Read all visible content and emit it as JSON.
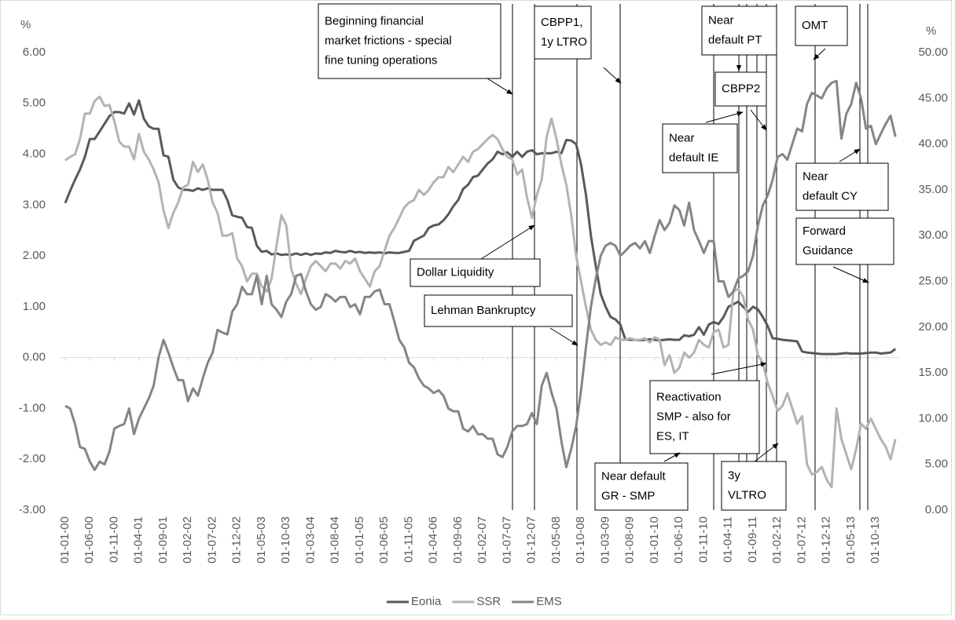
{
  "chart_data": {
    "type": "line",
    "y_label": "%",
    "y2_label": "%",
    "categories": [
      "01-01-00",
      null,
      null,
      null,
      null,
      "01-06-00",
      null,
      null,
      null,
      null,
      "01-11-00",
      null,
      null,
      null,
      null,
      "01-04-01",
      null,
      null,
      null,
      null,
      "01-09-01",
      null,
      null,
      null,
      null,
      "01-02-02",
      null,
      null,
      null,
      null,
      "01-07-02",
      null,
      null,
      null,
      null,
      "01-12-02",
      null,
      null,
      null,
      null,
      "01-05-03",
      null,
      null,
      null,
      null,
      "01-10-03",
      null,
      null,
      null,
      null,
      "01-03-04",
      null,
      null,
      null,
      null,
      "01-08-04",
      null,
      null,
      null,
      null,
      "01-01-05",
      null,
      null,
      null,
      null,
      "01-06-05",
      null,
      null,
      null,
      null,
      "01-11-05",
      null,
      null,
      null,
      null,
      "01-04-06",
      null,
      null,
      null,
      null,
      "01-09-06",
      null,
      null,
      null,
      null,
      "01-02-07",
      null,
      null,
      null,
      null,
      "01-07-07",
      null,
      null,
      null,
      null,
      "01-12-07",
      null,
      null,
      null,
      null,
      "01-05-08",
      null,
      null,
      null,
      null,
      "01-10-08",
      null,
      null,
      null,
      null,
      "01-03-09",
      null,
      null,
      null,
      null,
      "01-08-09",
      null,
      null,
      null,
      null,
      "01-01-10",
      null,
      null,
      null,
      null,
      "01-06-10",
      null,
      null,
      null,
      null,
      "01-11-10",
      null,
      null,
      null,
      null,
      "01-04-11",
      null,
      null,
      null,
      null,
      "01-09-11",
      null,
      null,
      null,
      null,
      "01-02-12",
      null,
      null,
      null,
      null,
      "01-07-12",
      null,
      null,
      null,
      null,
      "01-12-12",
      null,
      null,
      null,
      null,
      "01-05-13",
      null,
      null,
      null,
      null,
      "01-10-13",
      null,
      null,
      null,
      null
    ],
    "series": [
      {
        "name": "Eonia",
        "color": "#595959",
        "values": [
          3.04,
          3.28,
          3.5,
          3.7,
          3.95,
          4.3,
          4.3,
          4.45,
          4.6,
          4.75,
          4.83,
          4.83,
          4.8,
          5.0,
          4.78,
          5.06,
          4.7,
          4.55,
          4.5,
          4.5,
          3.98,
          3.95,
          3.5,
          3.35,
          3.3,
          3.3,
          3.28,
          3.33,
          3.3,
          3.33,
          3.3,
          3.3,
          3.3,
          3.1,
          2.8,
          2.77,
          2.75,
          2.57,
          2.55,
          2.2,
          2.08,
          2.1,
          2.03,
          2.05,
          2.02,
          2.03,
          2.02,
          2.05,
          2.02,
          2.05,
          2.02,
          2.05,
          2.04,
          2.07,
          2.06,
          2.1,
          2.08,
          2.07,
          2.1,
          2.07,
          2.08,
          2.06,
          2.07,
          2.06,
          2.07,
          2.05,
          2.07,
          2.06,
          2.06,
          2.08,
          2.1,
          2.3,
          2.35,
          2.4,
          2.55,
          2.6,
          2.62,
          2.7,
          2.82,
          2.98,
          3.1,
          3.32,
          3.4,
          3.55,
          3.58,
          3.7,
          3.82,
          3.9,
          4.05,
          4.0,
          4.04,
          3.95,
          4.05,
          3.95,
          4.05,
          4.08,
          4.0,
          4.02,
          4.02,
          4.02,
          4.05,
          4.02,
          4.28,
          4.27,
          4.2,
          3.8,
          3.2,
          2.4,
          1.8,
          1.25,
          1.0,
          0.8,
          0.75,
          0.65,
          0.36,
          0.35,
          0.35,
          0.34,
          0.35,
          0.36,
          0.35,
          0.34,
          0.35,
          0.36,
          0.35,
          0.35,
          0.44,
          0.42,
          0.45,
          0.6,
          0.45,
          0.65,
          0.7,
          0.66,
          0.8,
          1.0,
          1.05,
          1.1,
          1.0,
          0.9,
          1.0,
          0.95,
          0.8,
          0.62,
          0.38,
          0.37,
          0.35,
          0.34,
          0.33,
          0.32,
          0.12,
          0.1,
          0.09,
          0.08,
          0.07,
          0.07,
          0.07,
          0.07,
          0.08,
          0.09,
          0.08,
          0.08,
          0.08,
          0.09,
          0.1,
          0.1,
          0.08,
          0.09,
          0.1,
          0.17
        ]
      },
      {
        "name": "SSR",
        "color": "#b3b3b3",
        "values": [
          3.88,
          3.95,
          4.0,
          4.3,
          4.8,
          4.8,
          5.05,
          5.13,
          4.95,
          4.97,
          4.65,
          4.25,
          4.15,
          4.15,
          3.9,
          4.4,
          4.05,
          3.9,
          3.7,
          3.45,
          2.9,
          2.55,
          2.85,
          3.05,
          3.35,
          3.4,
          3.85,
          3.65,
          3.8,
          3.5,
          3.05,
          2.85,
          2.4,
          2.4,
          2.45,
          1.95,
          1.8,
          1.5,
          1.65,
          1.65,
          1.4,
          1.3,
          1.55,
          2.2,
          2.8,
          2.6,
          1.75,
          1.45,
          1.25,
          1.55,
          1.8,
          1.9,
          1.8,
          1.7,
          1.85,
          1.85,
          1.75,
          1.9,
          1.85,
          1.95,
          1.7,
          1.55,
          1.4,
          1.7,
          1.8,
          2.1,
          2.4,
          2.55,
          2.75,
          2.95,
          3.05,
          3.1,
          3.3,
          3.2,
          3.3,
          3.45,
          3.55,
          3.55,
          3.75,
          3.65,
          3.8,
          3.95,
          3.85,
          4.05,
          4.1,
          4.2,
          4.3,
          4.38,
          4.3,
          4.1,
          3.95,
          3.9,
          3.6,
          3.7,
          3.15,
          2.75,
          3.2,
          3.5,
          4.35,
          4.7,
          4.3,
          3.8,
          3.4,
          2.8,
          2.0,
          1.5,
          1.0,
          0.55,
          0.35,
          0.25,
          0.3,
          0.25,
          0.4,
          0.35,
          0.35,
          0.38,
          0.35,
          0.35,
          0.38,
          0.3,
          0.4,
          0.35,
          -0.15,
          0.05,
          -0.3,
          -0.2,
          0.1,
          0.0,
          0.1,
          0.35,
          0.25,
          0.2,
          0.5,
          0.55,
          0.2,
          0.25,
          1.3,
          1.35,
          1.2,
          0.75,
          0.55,
          0.05,
          -0.1,
          -0.5,
          -0.75,
          -1.05,
          -0.95,
          -0.7,
          -1.0,
          -1.3,
          -1.15,
          -2.1,
          -2.3,
          -2.25,
          -2.15,
          -2.4,
          -2.55,
          -1.0,
          -1.6,
          -1.9,
          -2.2,
          -1.8,
          -1.3,
          -1.4,
          -1.2,
          -1.4,
          -1.6,
          -1.75,
          -2.0,
          -1.6
        ]
      },
      {
        "name": "EMS",
        "color": "#858585",
        "axis": "y2",
        "values": [
          11.4,
          11.1,
          9.4,
          6.9,
          6.7,
          5.3,
          4.4,
          5.3,
          5.0,
          6.4,
          8.9,
          9.2,
          9.4,
          11.1,
          8.3,
          10.0,
          11.1,
          12.2,
          13.6,
          16.7,
          18.6,
          17.2,
          15.6,
          14.2,
          14.2,
          11.9,
          13.3,
          12.5,
          14.4,
          16.1,
          17.2,
          19.7,
          19.4,
          19.2,
          21.7,
          22.5,
          24.4,
          23.6,
          23.6,
          25.6,
          22.5,
          25.6,
          22.5,
          21.9,
          21.1,
          22.8,
          23.6,
          25.6,
          25.8,
          23.9,
          22.5,
          21.9,
          22.2,
          23.6,
          23.3,
          22.8,
          23.3,
          23.3,
          22.2,
          22.5,
          21.4,
          23.3,
          23.3,
          23.9,
          24.1,
          22.5,
          22.5,
          20.6,
          18.6,
          17.8,
          16.1,
          15.6,
          14.4,
          13.6,
          13.3,
          12.8,
          13.1,
          12.5,
          11.1,
          10.8,
          10.8,
          8.9,
          8.6,
          9.2,
          8.3,
          8.3,
          7.8,
          7.8,
          6.1,
          5.8,
          6.9,
          8.6,
          9.2,
          9.2,
          9.4,
          10.6,
          9.4,
          13.6,
          15.0,
          12.8,
          11.1,
          7.5,
          4.7,
          6.7,
          9.2,
          13.1,
          17.8,
          22.2,
          25.3,
          27.8,
          28.9,
          29.2,
          28.9,
          27.8,
          28.3,
          28.9,
          29.2,
          28.6,
          29.4,
          28.1,
          30.0,
          31.7,
          30.6,
          31.4,
          33.3,
          32.8,
          31.1,
          33.6,
          30.6,
          29.4,
          28.1,
          29.4,
          29.4,
          25.0,
          25.0,
          23.3,
          23.9,
          25.3,
          25.6,
          26.1,
          27.8,
          31.1,
          33.3,
          34.4,
          36.1,
          38.6,
          38.9,
          38.3,
          40.0,
          41.7,
          41.4,
          44.4,
          45.6,
          45.3,
          45.0,
          46.1,
          46.7,
          46.9,
          40.6,
          43.3,
          44.4,
          46.7,
          45.0,
          41.7,
          42.0,
          40.0,
          41.1,
          42.2,
          43.1,
          40.8
        ]
      }
    ],
    "ylim": [
      -3,
      6
    ],
    "yticks": [
      {
        "value": -3,
        "label": "-3.00"
      },
      {
        "value": -2,
        "label": "-2.00"
      },
      {
        "value": -1,
        "label": "-1.00"
      },
      {
        "value": 0,
        "label": "0.00"
      },
      {
        "value": 1,
        "label": "1.00"
      },
      {
        "value": 2,
        "label": "2.00"
      },
      {
        "value": 3,
        "label": "3.00"
      },
      {
        "value": 4,
        "label": "4.00"
      },
      {
        "value": 5,
        "label": "5.00"
      },
      {
        "value": 6,
        "label": "6.00"
      }
    ],
    "y2lim": [
      0,
      50
    ],
    "y2ticks": [
      {
        "value": 0,
        "label": "0.00"
      },
      {
        "value": 5,
        "label": "5.00"
      },
      {
        "value": 10,
        "label": "10.00"
      },
      {
        "value": 15,
        "label": "15.00"
      },
      {
        "value": 20,
        "label": "20.00"
      },
      {
        "value": 25,
        "label": "25.00"
      },
      {
        "value": 30,
        "label": "30.00"
      },
      {
        "value": 35,
        "label": "35.00"
      },
      {
        "value": 40,
        "label": "40.00"
      },
      {
        "value": 45,
        "label": "45.00"
      },
      {
        "value": 50,
        "label": "50.00"
      }
    ],
    "legend": "bottom",
    "annotations": [
      {
        "lines": [
          "Beginning financial",
          "market frictions - special",
          "fine tuning operations"
        ]
      },
      {
        "lines": [
          "CBPP1,",
          "1y LTRO"
        ]
      },
      {
        "lines": [
          "Near",
          "default PT"
        ]
      },
      {
        "lines": [
          "OMT"
        ]
      },
      {
        "lines": [
          "CBPP2"
        ]
      },
      {
        "lines": [
          "Near",
          "default IE"
        ]
      },
      {
        "lines": [
          "Near",
          "default CY"
        ]
      },
      {
        "lines": [
          "Forward",
          "Guidance"
        ]
      },
      {
        "lines": [
          "Dollar Liquidity"
        ]
      },
      {
        "lines": [
          "Lehman Bankruptcy"
        ]
      },
      {
        "lines": [
          "Reactivation",
          "SMP - also for",
          "ES, IT"
        ]
      },
      {
        "lines": [
          "Near default",
          "GR - SMP"
        ]
      },
      {
        "lines": [
          "3y",
          "VLTRO"
        ]
      }
    ]
  }
}
